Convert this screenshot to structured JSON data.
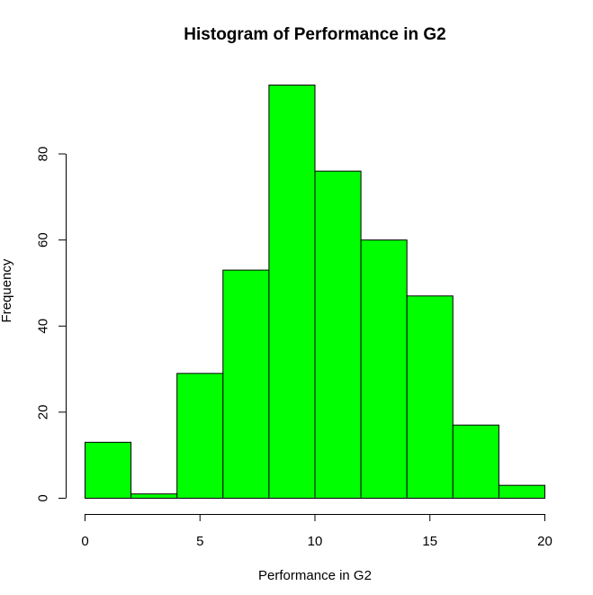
{
  "chart_data": {
    "type": "bar",
    "title": "Histogram of Performance in G2",
    "xlabel": "Performance in G2",
    "ylabel": "Frequency",
    "bins": [
      {
        "x0": 0,
        "x1": 2,
        "count": 13
      },
      {
        "x0": 2,
        "x1": 4,
        "count": 1
      },
      {
        "x0": 4,
        "x1": 6,
        "count": 29
      },
      {
        "x0": 6,
        "x1": 8,
        "count": 53
      },
      {
        "x0": 8,
        "x1": 10,
        "count": 96
      },
      {
        "x0": 10,
        "x1": 12,
        "count": 76
      },
      {
        "x0": 12,
        "x1": 14,
        "count": 60
      },
      {
        "x0": 14,
        "x1": 16,
        "count": 47
      },
      {
        "x0": 16,
        "x1": 18,
        "count": 17
      },
      {
        "x0": 18,
        "x1": 20,
        "count": 3
      }
    ],
    "xlim": [
      0,
      20
    ],
    "ylim": [
      0,
      96
    ],
    "x_ticks": [
      0,
      5,
      10,
      15,
      20
    ],
    "y_ticks": [
      0,
      20,
      40,
      60,
      80
    ],
    "x_tick_labels": [
      "0",
      "5",
      "10",
      "15",
      "20"
    ],
    "y_tick_labels": [
      "0",
      "20",
      "40",
      "60",
      "80"
    ],
    "bar_color": "#00ff00",
    "bar_edge_color": "#000000",
    "grid": false,
    "legend": "none"
  }
}
